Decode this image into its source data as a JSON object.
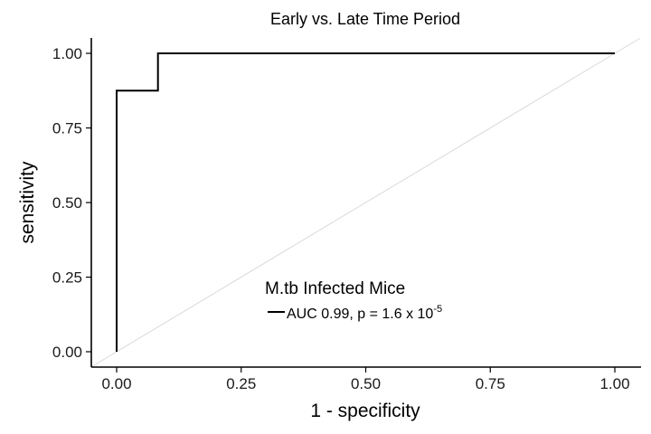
{
  "chart_data": {
    "type": "line",
    "title": "Early vs. Late Time Period",
    "xlabel": "1 - specificity",
    "ylabel": "sensitivity",
    "xlim": [
      0,
      1
    ],
    "ylim": [
      0,
      1
    ],
    "x_ticks": [
      "0.00",
      "0.25",
      "0.50",
      "0.75",
      "1.00"
    ],
    "y_ticks": [
      "0.00",
      "0.25",
      "0.50",
      "0.75",
      "1.00"
    ],
    "grid": false,
    "legend": {
      "title": "M.tb Infected Mice",
      "placement": "inside-bottom-center",
      "entries": [
        {
          "label_prefix": "AUC 0.99, p = 1.6 x 10",
          "exponent": "-5",
          "color": "#000000"
        }
      ]
    },
    "series": [
      {
        "color": "#000000",
        "x": [
          0.0,
          0.0,
          0.0,
          0.083,
          0.083,
          1.0
        ],
        "y": [
          0.0,
          0.875,
          0.875,
          0.875,
          1.0,
          1.0
        ]
      }
    ],
    "reference_line": {
      "x": [
        -0.05,
        1.05
      ],
      "y": [
        -0.05,
        1.05
      ],
      "color": "#d9d9d9"
    }
  }
}
